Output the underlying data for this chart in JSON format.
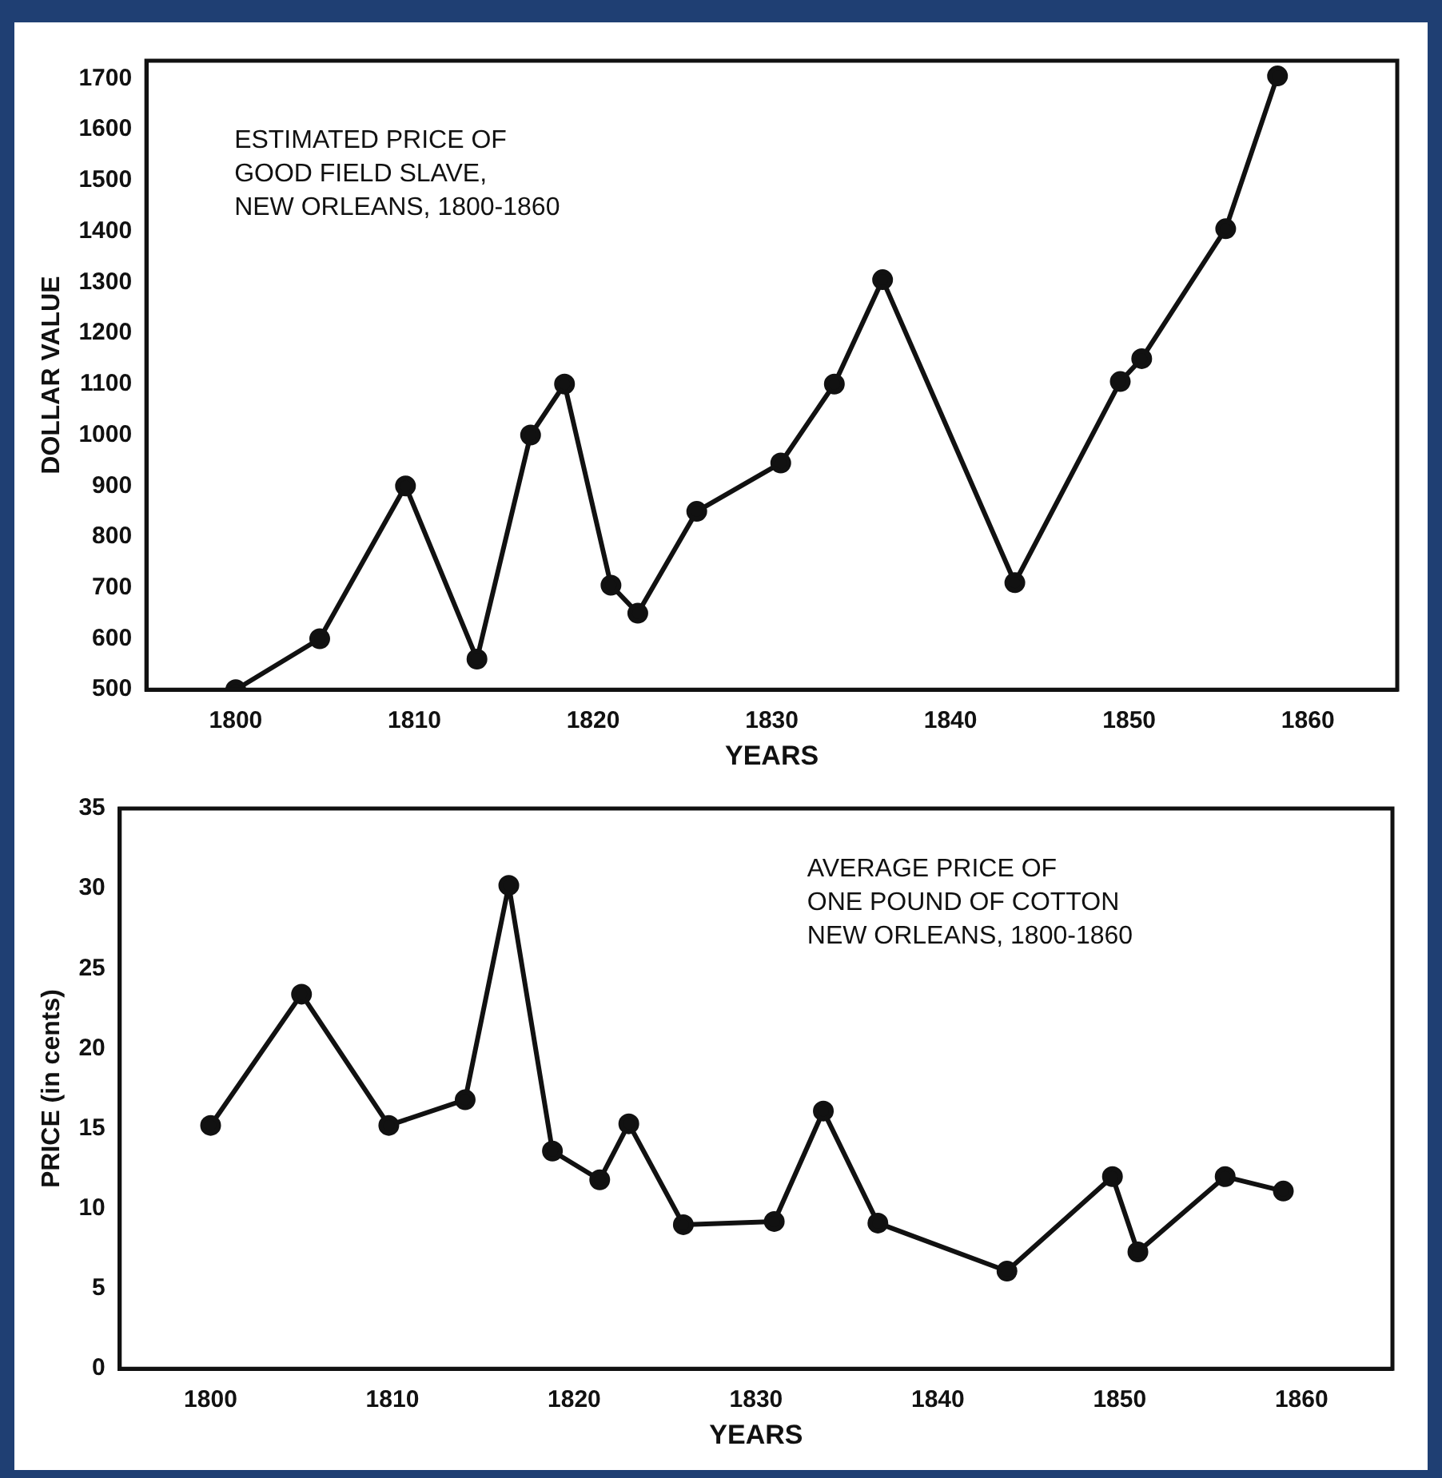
{
  "chart_data": [
    {
      "type": "line",
      "title": "ESTIMATED PRICE OF\nGOOD FIELD SLAVE,\nNEW ORLEANS, 1800-1860",
      "xlabel": "YEARS",
      "ylabel": "DOLLAR VALUE",
      "marker": "circle",
      "grid": false,
      "legend": false,
      "x": [
        1800,
        1804.7,
        1809.5,
        1813.5,
        1816.5,
        1818.4,
        1821,
        1822.5,
        1825.8,
        1830.5,
        1833.5,
        1836.2,
        1843.6,
        1849.5,
        1850.7,
        1855.4,
        1858.3
      ],
      "series": [
        {
          "color": "#111111",
          "values": [
            500,
            600,
            900,
            560,
            1000,
            1100,
            705,
            650,
            850,
            945,
            1100,
            1305,
            710,
            1105,
            1150,
            1405,
            1705
          ]
        }
      ],
      "xlim": [
        1795,
        1865
      ],
      "xticks": [
        1800,
        1810,
        1820,
        1830,
        1840,
        1850,
        1860
      ],
      "ylim": [
        500,
        1735
      ],
      "yticks": [
        500,
        600,
        700,
        800,
        900,
        1000,
        1100,
        1200,
        1300,
        1400,
        1500,
        1600,
        1700
      ]
    },
    {
      "type": "line",
      "title": "AVERAGE PRICE OF\nONE POUND OF COTTON\nNEW ORLEANS, 1800-1860",
      "xlabel": "YEARS",
      "ylabel": "PRICE (in cents)",
      "marker": "circle",
      "grid": false,
      "legend": false,
      "x": [
        1800,
        1805,
        1809.8,
        1814,
        1816.4,
        1818.8,
        1821.4,
        1823,
        1826,
        1831,
        1833.7,
        1836.7,
        1843.8,
        1849.6,
        1851,
        1855.8,
        1859
      ],
      "series": [
        {
          "color": "#111111",
          "values": [
            15.2,
            23.4,
            15.2,
            16.8,
            30.2,
            13.6,
            11.8,
            15.3,
            9.0,
            9.2,
            16.1,
            9.1,
            6.1,
            12.0,
            7.3,
            12.0,
            11.1
          ]
        }
      ],
      "xlim": [
        1795,
        1865
      ],
      "xticks": [
        1800,
        1810,
        1820,
        1830,
        1840,
        1850,
        1860
      ],
      "ylim": [
        0,
        35
      ],
      "yticks": [
        0,
        5,
        10,
        15,
        20,
        25,
        30,
        35
      ]
    }
  ]
}
